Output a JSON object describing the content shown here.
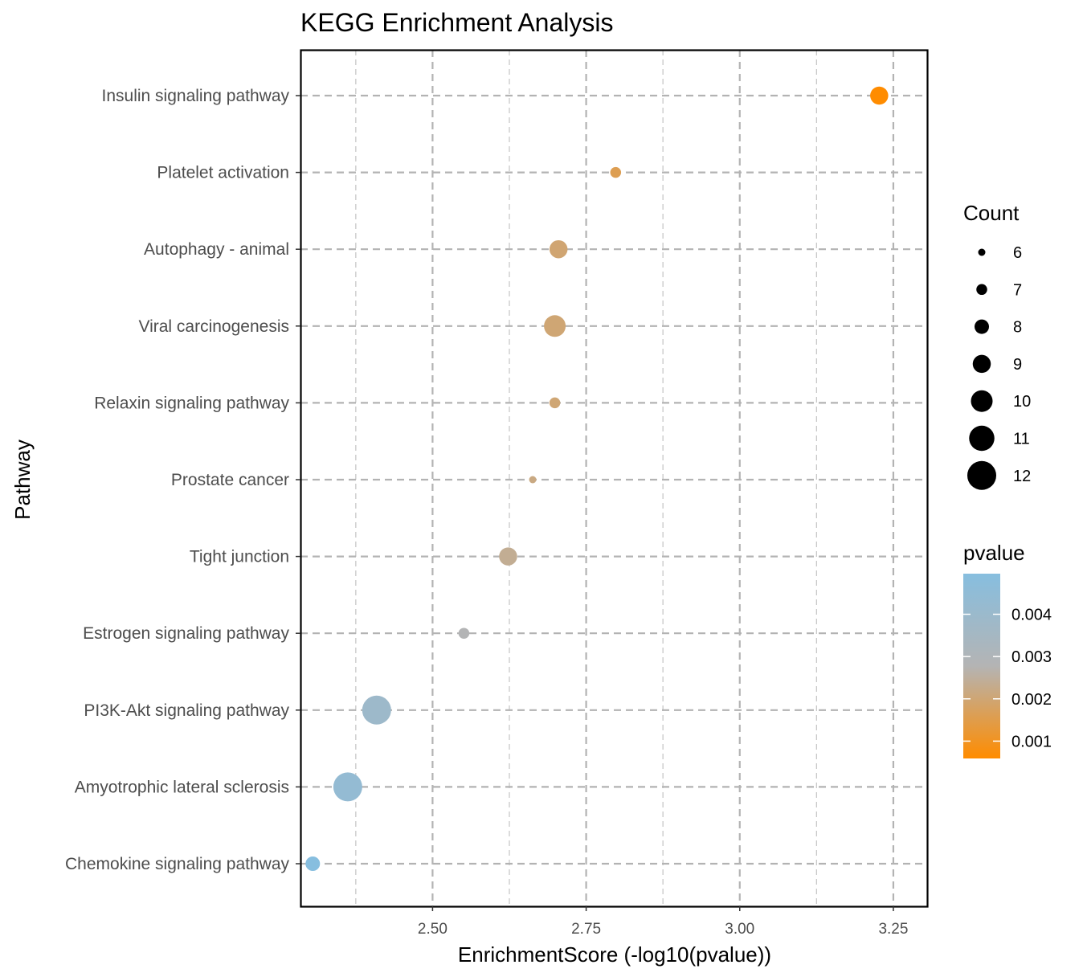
{
  "chart_data": {
    "type": "scatter",
    "title": "KEGG Enrichment Analysis",
    "xlabel": "EnrichmentScore (-log10(pvalue))",
    "ylabel": "Pathway",
    "xlim": [
      2.285,
      3.305
    ],
    "x_ticks": [
      2.5,
      2.75,
      3.0,
      3.25
    ],
    "x_tick_labels": [
      "2.50",
      "2.75",
      "3.00",
      "3.25"
    ],
    "grid": true,
    "grid_style": "dashed",
    "categories": [
      "Insulin signaling pathway",
      "Platelet activation",
      "Autophagy - animal",
      "Viral carcinogenesis",
      "Relaxin signaling pathway",
      "Prostate cancer",
      "Tight junction",
      "Estrogen signaling pathway",
      "PI3K-Akt signaling pathway",
      "Amyotrophic lateral sclerosis",
      "Chemokine signaling pathway"
    ],
    "points": [
      {
        "pathway": "Insulin signaling pathway",
        "x": 3.227,
        "count": 9,
        "pvalue": 0.000593
      },
      {
        "pathway": "Platelet activation",
        "x": 2.798,
        "count": 7,
        "pvalue": 0.00159
      },
      {
        "pathway": "Autophagy - animal",
        "x": 2.705,
        "count": 9,
        "pvalue": 0.00197
      },
      {
        "pathway": "Viral carcinogenesis",
        "x": 2.699,
        "count": 10,
        "pvalue": 0.002
      },
      {
        "pathway": "Relaxin signaling pathway",
        "x": 2.699,
        "count": 7,
        "pvalue": 0.002
      },
      {
        "pathway": "Prostate cancer",
        "x": 2.663,
        "count": 6,
        "pvalue": 0.00217
      },
      {
        "pathway": "Tight junction",
        "x": 2.623,
        "count": 9,
        "pvalue": 0.00238
      },
      {
        "pathway": "Estrogen signaling pathway",
        "x": 2.551,
        "count": 7,
        "pvalue": 0.00281
      },
      {
        "pathway": "PI3K-Akt signaling pathway",
        "x": 2.409,
        "count": 12,
        "pvalue": 0.0039
      },
      {
        "pathway": "Amyotrophic lateral sclerosis",
        "x": 2.362,
        "count": 12,
        "pvalue": 0.00435
      },
      {
        "pathway": "Chemokine signaling pathway",
        "x": 2.305,
        "count": 8,
        "pvalue": 0.00496
      }
    ],
    "size_legend": {
      "title": "Count",
      "values": [
        6,
        7,
        8,
        9,
        10,
        11,
        12
      ]
    },
    "color_legend": {
      "title": "pvalue",
      "range": [
        0.00059,
        0.00496
      ],
      "ticks": [
        0.001,
        0.002,
        0.003,
        0.004
      ],
      "tick_labels": [
        "0.001",
        "0.002",
        "0.003",
        "0.004"
      ],
      "low_color": "#FF8C00",
      "mid_color": "#B4B4B4",
      "high_color": "#87BEDF"
    },
    "legend_position": "right"
  }
}
